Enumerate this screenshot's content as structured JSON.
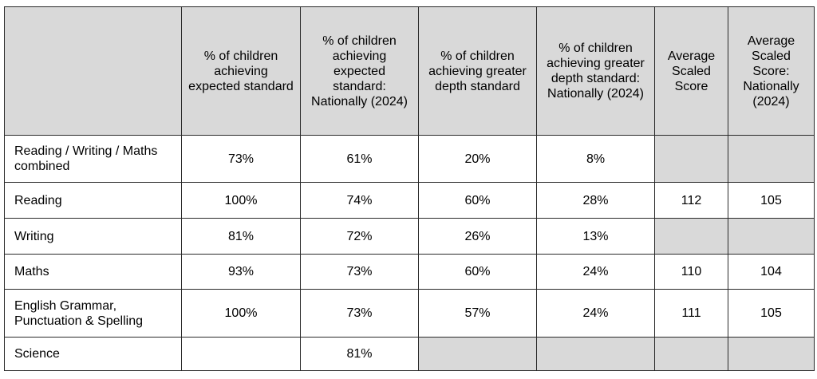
{
  "table": {
    "headers": [
      "",
      "% of children achieving expected standard",
      "% of children achieving expected standard: Nationally (2024)",
      "% of children achieving greater depth standard",
      "% of children achieving greater depth standard: Nationally (2024)",
      "Average Scaled Score",
      "Average Scaled Score: Nationally (2024)"
    ],
    "rows": [
      {
        "label": "Reading / Writing / Maths combined",
        "cells": [
          "73%",
          "61%",
          "20%",
          "8%",
          "",
          ""
        ],
        "grey": [
          false,
          false,
          false,
          false,
          true,
          true
        ]
      },
      {
        "label": "Reading",
        "cells": [
          "100%",
          "74%",
          "60%",
          "28%",
          "112",
          "105"
        ],
        "grey": [
          false,
          false,
          false,
          false,
          false,
          false
        ]
      },
      {
        "label": "Writing",
        "cells": [
          "81%",
          "72%",
          "26%",
          "13%",
          "",
          ""
        ],
        "grey": [
          false,
          false,
          false,
          false,
          true,
          true
        ]
      },
      {
        "label": "Maths",
        "cells": [
          "93%",
          "73%",
          "60%",
          "24%",
          "110",
          "104"
        ],
        "grey": [
          false,
          false,
          false,
          false,
          false,
          false
        ]
      },
      {
        "label": "English Grammar, Punctuation & Spelling",
        "cells": [
          "100%",
          "73%",
          "57%",
          "24%",
          "111",
          "105"
        ],
        "grey": [
          false,
          false,
          false,
          false,
          false,
          false
        ]
      },
      {
        "label": "Science",
        "cells": [
          "",
          "81%",
          "",
          "",
          "",
          ""
        ],
        "grey": [
          false,
          false,
          true,
          true,
          true,
          true
        ]
      }
    ],
    "colors": {
      "header_bg": "#d9d9d9",
      "empty_cell_bg": "#d9d9d9",
      "border": "#2a2a2a"
    }
  }
}
